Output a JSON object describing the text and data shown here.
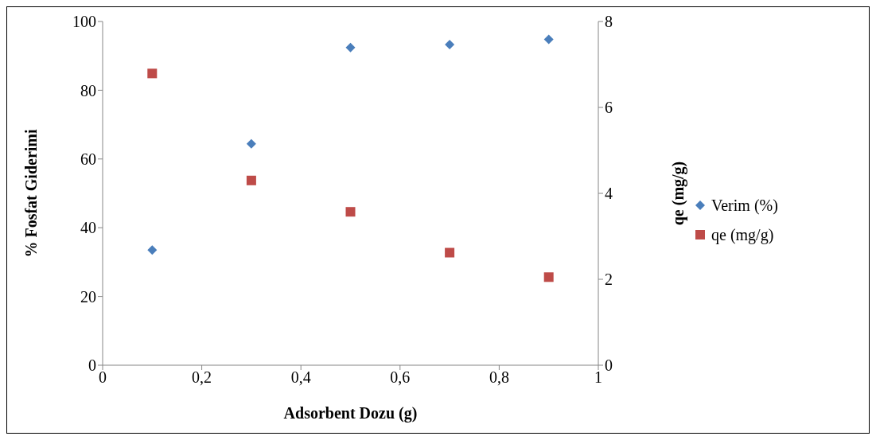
{
  "chart_data": {
    "type": "scatter",
    "xlabel": "Adsorbent Dozu (g)",
    "ylabel": "% Fosfat Giderimi",
    "y2label": "qe (mg/g)",
    "x": [
      0.1,
      0.3,
      0.5,
      0.7,
      0.9
    ],
    "series": [
      {
        "name": "Verim (%)",
        "color": "#4a7ebb",
        "marker": "diamond",
        "values": [
          33.5,
          64.4,
          92.4,
          93.3,
          94.8
        ]
      },
      {
        "name": "qe (mg/g)",
        "color": "#be4b48",
        "marker": "square",
        "axis": "y2",
        "values": [
          6.79,
          4.3,
          3.57,
          2.62,
          2.05
        ]
      }
    ],
    "xlim": [
      0,
      1
    ],
    "xticks": [
      0,
      {
        "value": 0.2,
        "label": "0,2"
      },
      {
        "value": 0.4,
        "label": "0,4"
      },
      {
        "value": 0.6,
        "label": "0,6"
      },
      {
        "value": 0.8,
        "label": "0,8"
      },
      1
    ],
    "ylim": [
      0,
      100
    ],
    "yticks": [
      0,
      20,
      40,
      60,
      80,
      100
    ],
    "y2lim": [
      0,
      8
    ],
    "y2ticks": [
      0,
      2,
      4,
      6,
      8
    ],
    "grid": false,
    "legend": "right"
  }
}
